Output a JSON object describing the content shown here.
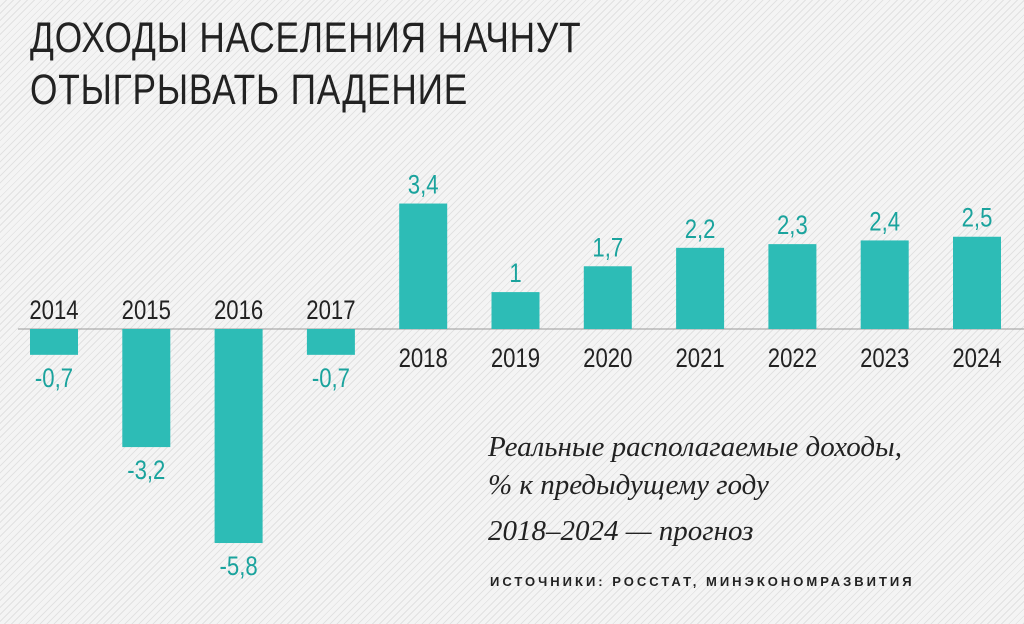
{
  "title": "ДОХОДЫ НАСЕЛЕНИЯ НАЧНУТ\nОТЫГРЫВАТЬ ПАДЕНИЕ",
  "caption": {
    "line1": "Реальные располагаемые доходы,",
    "line2": "% к предыдущему году",
    "note": "2018–2024 — прогноз"
  },
  "sources": "ИСТОЧНИКИ: РОССТАТ, МИНЭКОНОМРАЗВИТИЯ",
  "colors": {
    "bar": "#2dbcb6",
    "value_label": "#1aa39d",
    "text": "#222222"
  },
  "chart_data": {
    "type": "bar",
    "categories": [
      "2014",
      "2015",
      "2016",
      "2017",
      "2018",
      "2019",
      "2020",
      "2021",
      "2022",
      "2023",
      "2024"
    ],
    "values": [
      -0.7,
      -3.2,
      -5.8,
      -0.7,
      3.4,
      1,
      1.7,
      2.2,
      2.3,
      2.4,
      2.5
    ],
    "value_labels": [
      "-0,7",
      "-3,2",
      "-5,8",
      "-0,7",
      "3,4",
      "1",
      "1,7",
      "2,2",
      "2,3",
      "2,4",
      "2,5"
    ],
    "ylim": [
      -5.8,
      3.4
    ],
    "grid": false,
    "legend": "none"
  }
}
